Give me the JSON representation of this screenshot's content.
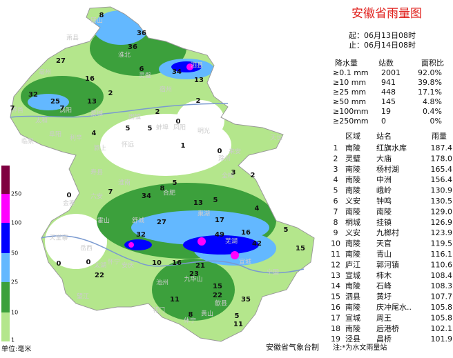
{
  "header": {
    "title": "安徽省雨量图",
    "start": "起：06月13日08时",
    "end": "止：06月14日08时"
  },
  "stats": {
    "columns": [
      "降水量",
      "站数",
      "面积比"
    ],
    "rows": [
      [
        "≥0.1 mm",
        "2001",
        "92.0%"
      ],
      [
        "≥10 mm",
        "941",
        "39.8%"
      ],
      [
        "≥25 mm",
        "448",
        "17.1%"
      ],
      [
        "≥50 mm",
        "145",
        "4.8%"
      ],
      [
        "≥100mm",
        "19",
        "0.4%"
      ],
      [
        "≥250mm",
        "0",
        "0%"
      ]
    ]
  },
  "ranking": {
    "columns": [
      "区域",
      "站名",
      "雨量"
    ],
    "rows": [
      [
        "1",
        "南陵",
        "红旗水库",
        "187.4"
      ],
      [
        "2",
        "灵璧",
        "大庙",
        "178.0"
      ],
      [
        "3",
        "南陵",
        "杨村湖",
        "165.4"
      ],
      [
        "4",
        "南陵",
        "中洲",
        "156.4"
      ],
      [
        "5",
        "南陵",
        "峨岭",
        "130.9"
      ],
      [
        "6",
        "义安",
        "钟鸣",
        "130.5"
      ],
      [
        "7",
        "南陵",
        "南陵",
        "129.0"
      ],
      [
        "8",
        "桐城",
        "挂镇",
        "126.9"
      ],
      [
        "9",
        "义安",
        "九榔村",
        "123.9"
      ],
      [
        "10",
        "南陵",
        "天官",
        "119.5"
      ],
      [
        "11",
        "南陵",
        "青山",
        "116.1"
      ],
      [
        "12",
        "庐江",
        "郭河镇",
        "110.6"
      ],
      [
        "13",
        "宣城",
        "柿木",
        "108.4"
      ],
      [
        "14",
        "南陵",
        "石峰",
        "108.3"
      ],
      [
        "15",
        "泗县",
        "黄圩",
        "107.7"
      ],
      [
        "16",
        "南陵",
        "庆冲尾水..",
        "105.8"
      ],
      [
        "17",
        "宣城",
        "周王",
        "105.8"
      ],
      [
        "18",
        "南陵",
        "后港桥",
        "102.1"
      ],
      [
        "19",
        "泾县",
        "昌桥",
        "101.9"
      ]
    ]
  },
  "legend": {
    "ticks": [
      250,
      100,
      50,
      25,
      10,
      1
    ],
    "unit": "单位:毫米"
  },
  "map": {
    "values": [
      8,
      36,
      36,
      27,
      6,
      34,
      13,
      16,
      2,
      32,
      25,
      13,
      7,
      7,
      2,
      0,
      2,
      4,
      5,
      5,
      1,
      0,
      7,
      34,
      8,
      5,
      13,
      5,
      3,
      2,
      4,
      27,
      17,
      32,
      49,
      16,
      42,
      5,
      15,
      0,
      0,
      0,
      22,
      16,
      21,
      23,
      10,
      15,
      22,
      35,
      11,
      8,
      5,
      11
    ],
    "places": [
      "砀山",
      "萧县",
      "淮北",
      "宿州",
      "灵璧",
      "泗县",
      "亳州",
      "涡阳",
      "蒙城",
      "固镇",
      "界首",
      "太和",
      "阜阳",
      "临泉",
      "利辛",
      "颍上",
      "怀远",
      "凤阳",
      "蚌埠",
      "明光",
      "淮南",
      "寿县",
      "天长",
      "来安",
      "滁州",
      "全椒",
      "合肥",
      "六安",
      "金寨",
      "天堂寨",
      "霍山",
      "岳西",
      "舒城",
      "巢湖",
      "芜湖",
      "宣城",
      "宁国",
      "安庆",
      "怀宁",
      "太湖",
      "望江",
      "池州",
      "九华山",
      "黄山",
      "祁门",
      "休宁",
      "歙县"
    ]
  },
  "footer": {
    "maker": "安徽省气象台制",
    "note": "注:*为水文雨量站"
  }
}
